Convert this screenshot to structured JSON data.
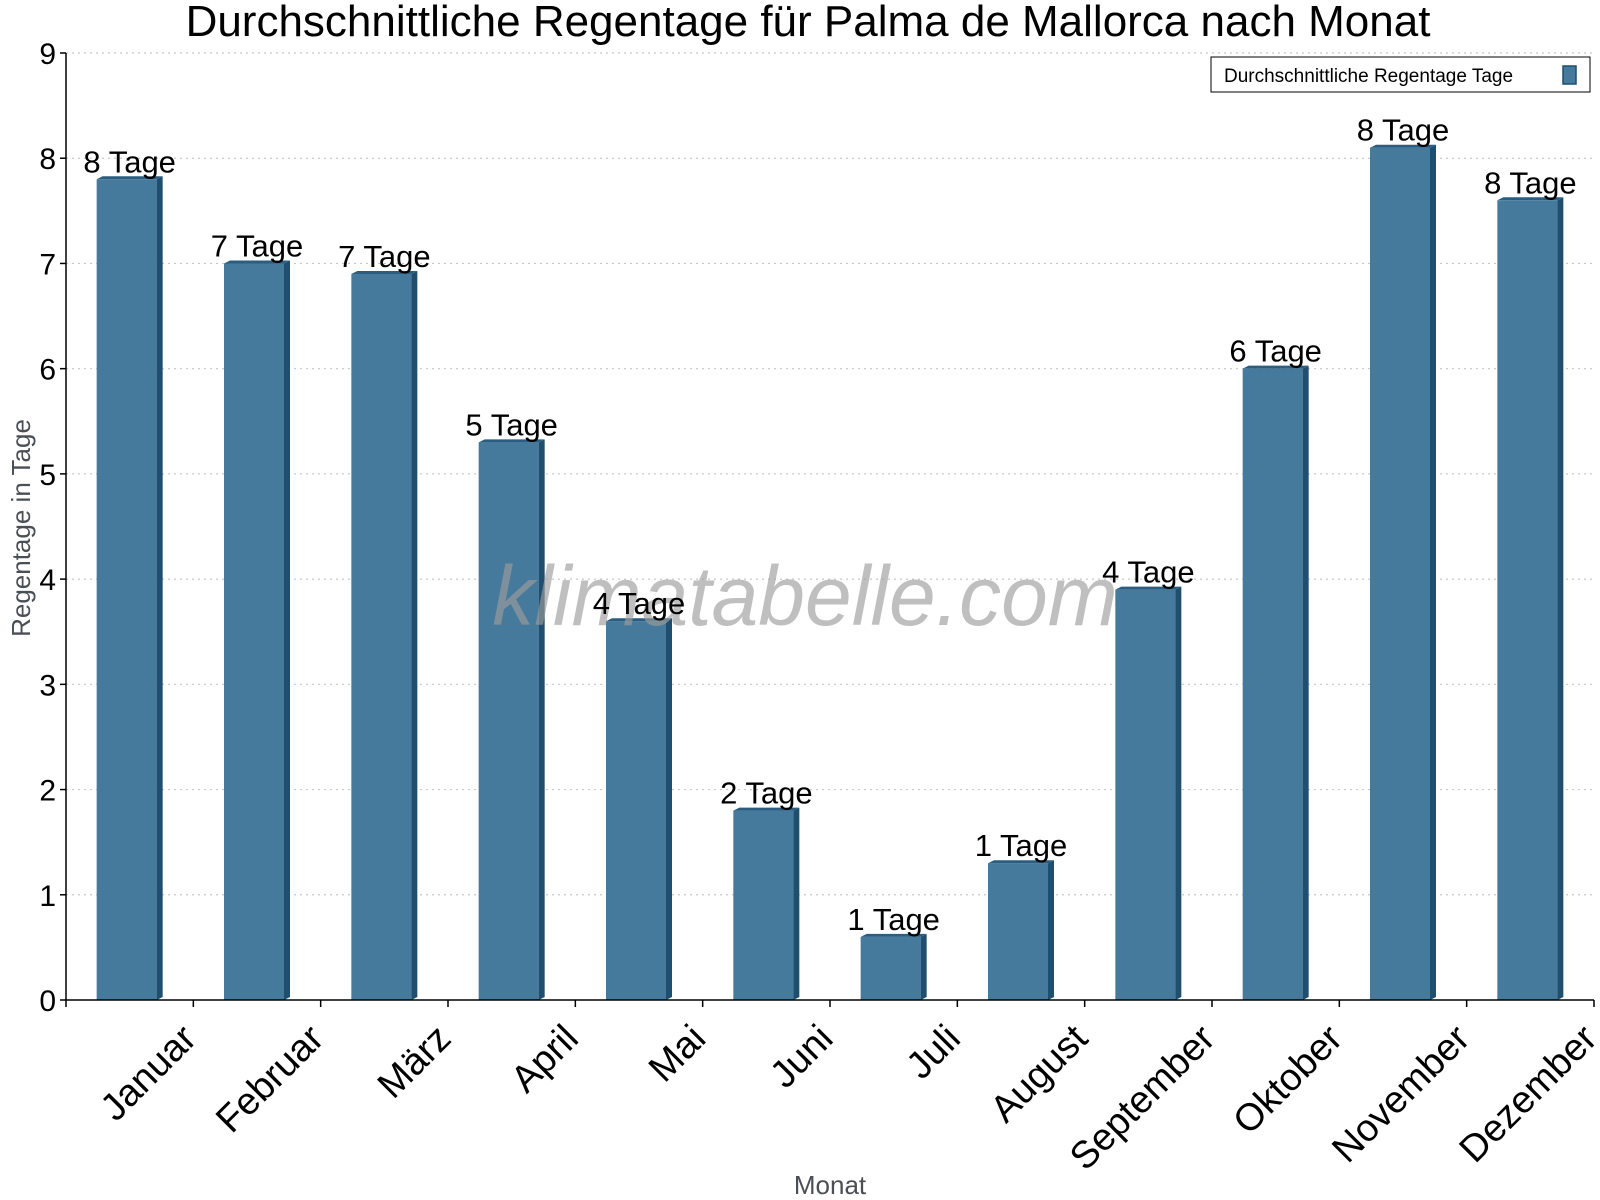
{
  "chart_data": {
    "type": "bar",
    "title": "Durchschnittliche Regentage für Palma de Mallorca nach Monat",
    "xlabel": "Monat",
    "ylabel": "Regentage in Tage",
    "ylim": [
      0,
      9
    ],
    "yticks": [
      0,
      1,
      2,
      3,
      4,
      5,
      6,
      7,
      8,
      9
    ],
    "grid": true,
    "legend_position": "top-right",
    "categories": [
      "Januar",
      "Februar",
      "März",
      "April",
      "Mai",
      "Juni",
      "Juli",
      "August",
      "September",
      "Oktober",
      "November",
      "Dezember"
    ],
    "series": [
      {
        "name": "Durchschnittliche Regentage Tage",
        "values": [
          7.8,
          7.0,
          6.9,
          5.3,
          3.6,
          1.8,
          0.6,
          1.3,
          3.9,
          6.0,
          8.1,
          7.6
        ],
        "labels": [
          "8 Tage",
          "7 Tage",
          "7 Tage",
          "5 Tage",
          "4 Tage",
          "2 Tage",
          "1 Tage",
          "1 Tage",
          "4 Tage",
          "6 Tage",
          "8 Tage",
          "8 Tage"
        ]
      }
    ],
    "colors": {
      "bar": "#467a9c",
      "bar_side": "#1f4e6e",
      "bar_top": "#2b5d80",
      "grid": "#c8c8c8",
      "axis": "#000000"
    }
  },
  "watermark": "klimatabelle.com"
}
